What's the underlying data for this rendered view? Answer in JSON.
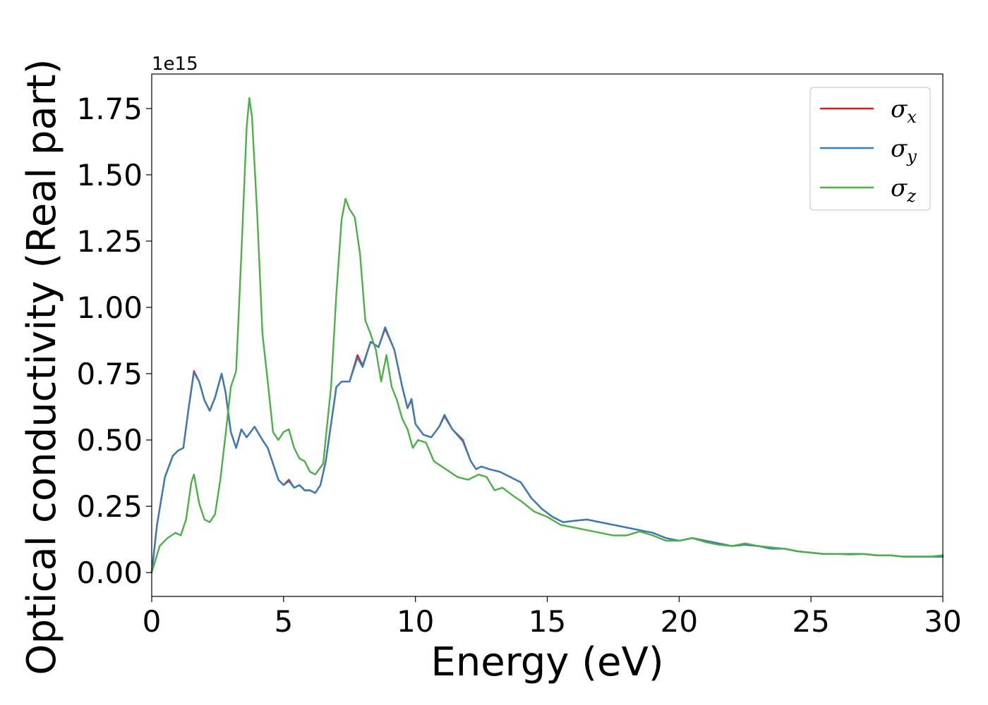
{
  "chart_data": {
    "type": "line",
    "xlabel": "Energy (eV)",
    "ylabel": "Optical conductivity (Real part)",
    "y_offset_label": "1e15",
    "y_scale": 1000000000000000.0,
    "xlim": [
      0,
      30
    ],
    "ylim": [
      -0.09,
      1.88
    ],
    "x_ticks": [
      0,
      5,
      10,
      15,
      20,
      25,
      30
    ],
    "x_tick_labels": [
      "0",
      "5",
      "10",
      "15",
      "20",
      "25",
      "30"
    ],
    "y_ticks": [
      0,
      0.25,
      0.5,
      0.75,
      1.0,
      1.25,
      1.5,
      1.75
    ],
    "y_tick_labels": [
      "0.00",
      "0.25",
      "0.50",
      "0.75",
      "1.00",
      "1.25",
      "1.50",
      "1.75"
    ],
    "grid": false,
    "legend_position": "top-right",
    "series": [
      {
        "name": "σx",
        "symbol": "σ",
        "subscript": "x",
        "color": "#e41a1c",
        "points": [
          [
            0,
            0
          ],
          [
            0.2,
            0.18
          ],
          [
            0.5,
            0.36
          ],
          [
            0.8,
            0.44
          ],
          [
            1.0,
            0.46
          ],
          [
            1.2,
            0.47
          ],
          [
            1.4,
            0.62
          ],
          [
            1.6,
            0.76
          ],
          [
            1.8,
            0.72
          ],
          [
            2.0,
            0.65
          ],
          [
            2.2,
            0.61
          ],
          [
            2.4,
            0.66
          ],
          [
            2.65,
            0.75
          ],
          [
            2.8,
            0.68
          ],
          [
            3.0,
            0.53
          ],
          [
            3.2,
            0.47
          ],
          [
            3.4,
            0.54
          ],
          [
            3.6,
            0.51
          ],
          [
            3.9,
            0.55
          ],
          [
            4.2,
            0.5
          ],
          [
            4.4,
            0.47
          ],
          [
            4.6,
            0.41
          ],
          [
            4.8,
            0.35
          ],
          [
            5.0,
            0.33
          ],
          [
            5.2,
            0.35
          ],
          [
            5.4,
            0.32
          ],
          [
            5.6,
            0.33
          ],
          [
            5.8,
            0.31
          ],
          [
            6.0,
            0.31
          ],
          [
            6.2,
            0.3
          ],
          [
            6.4,
            0.33
          ],
          [
            6.6,
            0.42
          ],
          [
            6.8,
            0.56
          ],
          [
            7.0,
            0.7
          ],
          [
            7.2,
            0.72
          ],
          [
            7.5,
            0.72
          ],
          [
            7.8,
            0.82
          ],
          [
            8.0,
            0.78
          ],
          [
            8.3,
            0.87
          ],
          [
            8.6,
            0.85
          ],
          [
            8.85,
            0.92
          ],
          [
            9.2,
            0.84
          ],
          [
            9.5,
            0.7
          ],
          [
            9.7,
            0.62
          ],
          [
            9.85,
            0.65
          ],
          [
            10.0,
            0.56
          ],
          [
            10.3,
            0.52
          ],
          [
            10.6,
            0.51
          ],
          [
            10.9,
            0.55
          ],
          [
            11.1,
            0.59
          ],
          [
            11.4,
            0.54
          ],
          [
            11.8,
            0.5
          ],
          [
            12.1,
            0.42
          ],
          [
            12.3,
            0.39
          ],
          [
            12.5,
            0.4
          ],
          [
            12.8,
            0.39
          ],
          [
            13.2,
            0.38
          ],
          [
            13.6,
            0.36
          ],
          [
            14.0,
            0.34
          ],
          [
            14.4,
            0.28
          ],
          [
            14.8,
            0.24
          ],
          [
            15.2,
            0.21
          ],
          [
            15.6,
            0.19
          ],
          [
            16.0,
            0.195
          ],
          [
            16.5,
            0.2
          ],
          [
            17.0,
            0.19
          ],
          [
            17.5,
            0.18
          ],
          [
            18.0,
            0.17
          ],
          [
            18.5,
            0.16
          ],
          [
            19.0,
            0.15
          ],
          [
            19.5,
            0.13
          ],
          [
            20.0,
            0.12
          ],
          [
            20.5,
            0.13
          ],
          [
            21.0,
            0.12
          ],
          [
            21.5,
            0.11
          ],
          [
            22.0,
            0.1
          ],
          [
            22.5,
            0.105
          ],
          [
            23.0,
            0.1
          ],
          [
            23.5,
            0.09
          ],
          [
            24.0,
            0.09
          ],
          [
            24.5,
            0.08
          ],
          [
            25.0,
            0.075
          ],
          [
            25.5,
            0.07
          ],
          [
            26.0,
            0.07
          ],
          [
            26.5,
            0.07
          ],
          [
            27.0,
            0.07
          ],
          [
            27.5,
            0.065
          ],
          [
            28.0,
            0.065
          ],
          [
            28.5,
            0.06
          ],
          [
            29.0,
            0.06
          ],
          [
            29.5,
            0.06
          ],
          [
            30.0,
            0.06
          ]
        ]
      },
      {
        "name": "σy",
        "symbol": "σ",
        "subscript": "y",
        "color": "#377eb8",
        "points": [
          [
            0,
            0
          ],
          [
            0.2,
            0.18
          ],
          [
            0.5,
            0.36
          ],
          [
            0.8,
            0.44
          ],
          [
            1.0,
            0.46
          ],
          [
            1.2,
            0.47
          ],
          [
            1.4,
            0.62
          ],
          [
            1.6,
            0.755
          ],
          [
            1.8,
            0.72
          ],
          [
            2.0,
            0.65
          ],
          [
            2.2,
            0.61
          ],
          [
            2.4,
            0.66
          ],
          [
            2.65,
            0.75
          ],
          [
            2.8,
            0.68
          ],
          [
            3.0,
            0.53
          ],
          [
            3.2,
            0.47
          ],
          [
            3.4,
            0.54
          ],
          [
            3.6,
            0.51
          ],
          [
            3.9,
            0.55
          ],
          [
            4.2,
            0.5
          ],
          [
            4.4,
            0.47
          ],
          [
            4.6,
            0.41
          ],
          [
            4.8,
            0.35
          ],
          [
            5.0,
            0.33
          ],
          [
            5.2,
            0.345
          ],
          [
            5.4,
            0.32
          ],
          [
            5.6,
            0.33
          ],
          [
            5.8,
            0.31
          ],
          [
            6.0,
            0.31
          ],
          [
            6.2,
            0.3
          ],
          [
            6.4,
            0.33
          ],
          [
            6.6,
            0.42
          ],
          [
            6.8,
            0.56
          ],
          [
            7.0,
            0.7
          ],
          [
            7.2,
            0.72
          ],
          [
            7.5,
            0.72
          ],
          [
            7.8,
            0.81
          ],
          [
            8.0,
            0.775
          ],
          [
            8.3,
            0.87
          ],
          [
            8.6,
            0.85
          ],
          [
            8.85,
            0.925
          ],
          [
            9.2,
            0.84
          ],
          [
            9.5,
            0.7
          ],
          [
            9.7,
            0.62
          ],
          [
            9.85,
            0.655
          ],
          [
            10.0,
            0.56
          ],
          [
            10.3,
            0.52
          ],
          [
            10.6,
            0.51
          ],
          [
            10.9,
            0.55
          ],
          [
            11.1,
            0.595
          ],
          [
            11.4,
            0.54
          ],
          [
            11.8,
            0.495
          ],
          [
            12.1,
            0.42
          ],
          [
            12.3,
            0.39
          ],
          [
            12.5,
            0.4
          ],
          [
            12.8,
            0.39
          ],
          [
            13.2,
            0.38
          ],
          [
            13.6,
            0.36
          ],
          [
            14.0,
            0.34
          ],
          [
            14.4,
            0.28
          ],
          [
            14.8,
            0.24
          ],
          [
            15.2,
            0.21
          ],
          [
            15.6,
            0.19
          ],
          [
            16.0,
            0.195
          ],
          [
            16.5,
            0.2
          ],
          [
            17.0,
            0.19
          ],
          [
            17.5,
            0.18
          ],
          [
            18.0,
            0.17
          ],
          [
            18.5,
            0.16
          ],
          [
            19.0,
            0.15
          ],
          [
            19.5,
            0.13
          ],
          [
            20.0,
            0.12
          ],
          [
            20.5,
            0.13
          ],
          [
            21.0,
            0.12
          ],
          [
            21.5,
            0.11
          ],
          [
            22.0,
            0.1
          ],
          [
            22.5,
            0.105
          ],
          [
            23.0,
            0.1
          ],
          [
            23.5,
            0.09
          ],
          [
            24.0,
            0.09
          ],
          [
            24.5,
            0.08
          ],
          [
            25.0,
            0.075
          ],
          [
            25.5,
            0.07
          ],
          [
            26.0,
            0.07
          ],
          [
            26.5,
            0.07
          ],
          [
            27.0,
            0.07
          ],
          [
            27.5,
            0.065
          ],
          [
            28.0,
            0.065
          ],
          [
            28.5,
            0.06
          ],
          [
            29.0,
            0.06
          ],
          [
            29.5,
            0.06
          ],
          [
            30.0,
            0.06
          ]
        ]
      },
      {
        "name": "σz",
        "symbol": "σ",
        "subscript": "z",
        "color": "#4daf4a",
        "points": [
          [
            0,
            0
          ],
          [
            0.3,
            0.1
          ],
          [
            0.6,
            0.13
          ],
          [
            0.9,
            0.15
          ],
          [
            1.1,
            0.14
          ],
          [
            1.3,
            0.2
          ],
          [
            1.5,
            0.34
          ],
          [
            1.6,
            0.37
          ],
          [
            1.8,
            0.26
          ],
          [
            2.0,
            0.2
          ],
          [
            2.2,
            0.19
          ],
          [
            2.4,
            0.22
          ],
          [
            2.6,
            0.35
          ],
          [
            2.8,
            0.52
          ],
          [
            3.0,
            0.7
          ],
          [
            3.2,
            0.76
          ],
          [
            3.4,
            1.2
          ],
          [
            3.6,
            1.68
          ],
          [
            3.7,
            1.79
          ],
          [
            3.8,
            1.72
          ],
          [
            4.0,
            1.35
          ],
          [
            4.2,
            0.9
          ],
          [
            4.4,
            0.72
          ],
          [
            4.6,
            0.53
          ],
          [
            4.8,
            0.5
          ],
          [
            5.0,
            0.53
          ],
          [
            5.2,
            0.54
          ],
          [
            5.4,
            0.47
          ],
          [
            5.6,
            0.43
          ],
          [
            5.8,
            0.42
          ],
          [
            6.0,
            0.38
          ],
          [
            6.2,
            0.37
          ],
          [
            6.5,
            0.41
          ],
          [
            6.8,
            0.7
          ],
          [
            7.0,
            1.05
          ],
          [
            7.2,
            1.33
          ],
          [
            7.35,
            1.41
          ],
          [
            7.5,
            1.37
          ],
          [
            7.7,
            1.34
          ],
          [
            7.9,
            1.2
          ],
          [
            8.1,
            0.95
          ],
          [
            8.3,
            0.9
          ],
          [
            8.5,
            0.84
          ],
          [
            8.7,
            0.72
          ],
          [
            8.9,
            0.82
          ],
          [
            9.1,
            0.7
          ],
          [
            9.3,
            0.65
          ],
          [
            9.5,
            0.58
          ],
          [
            9.7,
            0.54
          ],
          [
            9.9,
            0.47
          ],
          [
            10.1,
            0.5
          ],
          [
            10.4,
            0.49
          ],
          [
            10.7,
            0.42
          ],
          [
            11.0,
            0.4
          ],
          [
            11.3,
            0.38
          ],
          [
            11.6,
            0.36
          ],
          [
            12.0,
            0.35
          ],
          [
            12.4,
            0.37
          ],
          [
            12.7,
            0.36
          ],
          [
            13.0,
            0.31
          ],
          [
            13.3,
            0.32
          ],
          [
            13.7,
            0.29
          ],
          [
            14.0,
            0.27
          ],
          [
            14.5,
            0.23
          ],
          [
            15.0,
            0.21
          ],
          [
            15.5,
            0.18
          ],
          [
            16.0,
            0.17
          ],
          [
            16.5,
            0.16
          ],
          [
            17.0,
            0.15
          ],
          [
            17.5,
            0.14
          ],
          [
            18.0,
            0.14
          ],
          [
            18.5,
            0.155
          ],
          [
            19.0,
            0.14
          ],
          [
            19.5,
            0.12
          ],
          [
            20.0,
            0.12
          ],
          [
            20.5,
            0.13
          ],
          [
            21.0,
            0.115
          ],
          [
            21.5,
            0.105
          ],
          [
            22.0,
            0.1
          ],
          [
            22.5,
            0.11
          ],
          [
            23.0,
            0.1
          ],
          [
            23.5,
            0.095
          ],
          [
            24.0,
            0.09
          ],
          [
            24.5,
            0.08
          ],
          [
            25.0,
            0.075
          ],
          [
            25.5,
            0.07
          ],
          [
            26.0,
            0.07
          ],
          [
            26.5,
            0.068
          ],
          [
            27.0,
            0.07
          ],
          [
            27.5,
            0.065
          ],
          [
            28.0,
            0.065
          ],
          [
            28.5,
            0.06
          ],
          [
            29.0,
            0.06
          ],
          [
            29.5,
            0.06
          ],
          [
            30.0,
            0.065
          ]
        ]
      }
    ]
  }
}
